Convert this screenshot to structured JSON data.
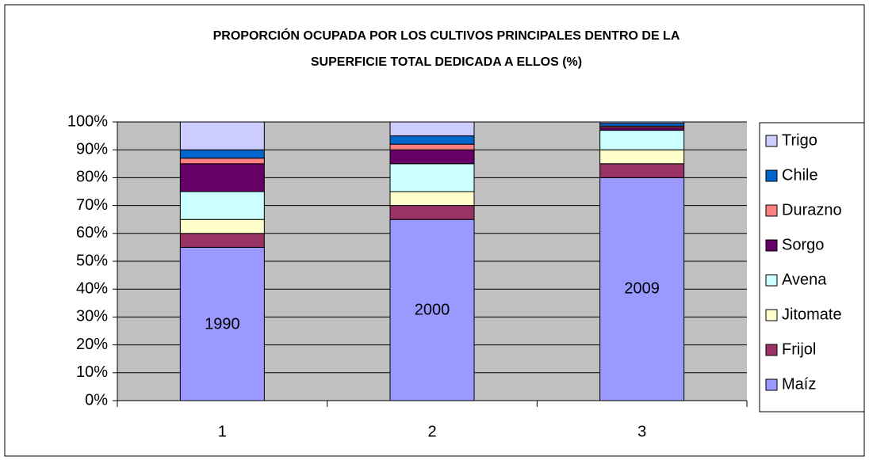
{
  "chart_data": {
    "type": "stacked_bar",
    "title": [
      "PROPORCIÓN OCUPADA POR LOS CULTIVOS PRINCIPALES DENTRO DE LA",
      "SUPERFICIE TOTAL DEDICADA A ELLOS (%)"
    ],
    "categories": [
      "1",
      "2",
      "3"
    ],
    "annotations": [
      "1990",
      "2000",
      "2009"
    ],
    "series": [
      {
        "name": "Maíz",
        "color": "#9999ff",
        "values": [
          55,
          65,
          80
        ]
      },
      {
        "name": "Frijol",
        "color": "#993366",
        "values": [
          5,
          5,
          5
        ]
      },
      {
        "name": "Jitomate",
        "color": "#ffffcc",
        "values": [
          5,
          5,
          5
        ]
      },
      {
        "name": "Avena",
        "color": "#ccffff",
        "values": [
          10,
          10,
          7
        ]
      },
      {
        "name": "Sorgo",
        "color": "#660066",
        "values": [
          10,
          5,
          1
        ]
      },
      {
        "name": "Durazno",
        "color": "#ff8080",
        "values": [
          2,
          2,
          0.5
        ]
      },
      {
        "name": "Chile",
        "color": "#0066cc",
        "values": [
          3,
          3,
          1
        ]
      },
      {
        "name": "Trigo",
        "color": "#ccccff",
        "values": [
          10,
          5,
          0.5
        ]
      }
    ],
    "ylim": [
      0,
      100
    ],
    "yticks": [
      {
        "value": 0,
        "label": "0%"
      },
      {
        "value": 10,
        "label": "10%"
      },
      {
        "value": 20,
        "label": "20%"
      },
      {
        "value": 30,
        "label": "30%"
      },
      {
        "value": 40,
        "label": "40%"
      },
      {
        "value": 50,
        "label": "50%"
      },
      {
        "value": 60,
        "label": "60%"
      },
      {
        "value": 70,
        "label": "70%"
      },
      {
        "value": 80,
        "label": "80%"
      },
      {
        "value": 90,
        "label": "90%"
      },
      {
        "value": 100,
        "label": "100%"
      }
    ],
    "grid": true,
    "legend": "right",
    "plot_background": "#c0c0c0"
  }
}
